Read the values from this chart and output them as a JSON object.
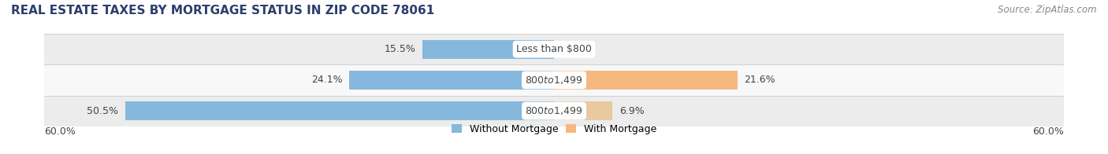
{
  "title": "REAL ESTATE TAXES BY MORTGAGE STATUS IN ZIP CODE 78061",
  "source": "Source: ZipAtlas.com",
  "rows": [
    {
      "without_mortgage": 15.5,
      "with_mortgage": 0.0,
      "label": "Less than $800"
    },
    {
      "without_mortgage": 24.1,
      "with_mortgage": 21.6,
      "label": "$800 to $1,499"
    },
    {
      "without_mortgage": 50.5,
      "with_mortgage": 6.9,
      "label": "$800 to $1,499"
    }
  ],
  "axis_max": 60.0,
  "axis_label_left": "60.0%",
  "axis_label_right": "60.0%",
  "color_without": "#85b8dc",
  "color_with": "#f5b97f",
  "color_with_row1": "#e8c9a0",
  "color_with_row3": "#e8c9a0",
  "legend_without": "Without Mortgage",
  "legend_with": "With Mortgage",
  "bar_height": 0.62,
  "title_fontsize": 11,
  "source_fontsize": 8.5,
  "label_fontsize": 9,
  "value_fontsize": 9,
  "tick_fontsize": 9,
  "row_colors": [
    "#ececec",
    "#f8f8f8",
    "#ececec"
  ],
  "title_color": "#2c3e6b",
  "source_color": "#888888",
  "text_color": "#444444",
  "label_bg": "#ffffff",
  "separator_color": "#d0d0d0"
}
